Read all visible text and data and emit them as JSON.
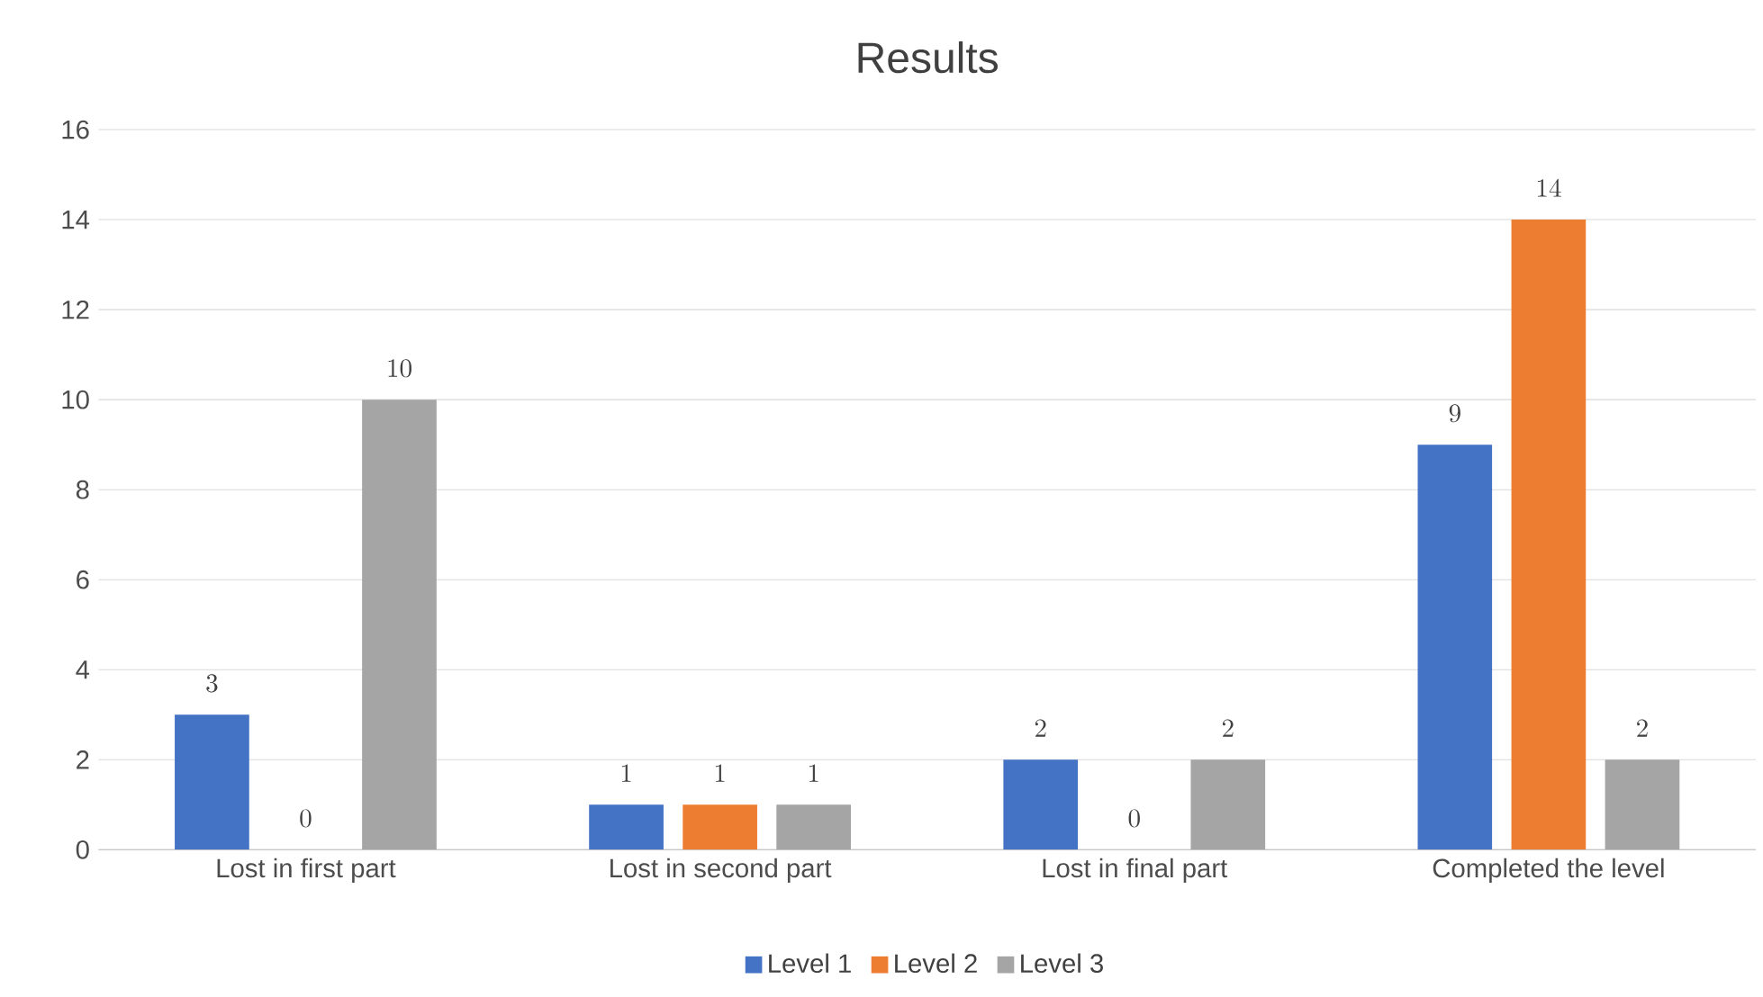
{
  "chart_data": {
    "type": "bar",
    "title": "Results",
    "categories": [
      "Lost in first part",
      "Lost in second part",
      "Lost in final part",
      "Completed the level"
    ],
    "series": [
      {
        "name": "Level 1",
        "color": "#4472c4",
        "values": [
          3,
          1,
          2,
          9
        ]
      },
      {
        "name": "Level 2",
        "color": "#ed7d31",
        "values": [
          0,
          1,
          0,
          14
        ]
      },
      {
        "name": "Level 3",
        "color": "#a5a5a5",
        "values": [
          10,
          1,
          2,
          2
        ]
      }
    ],
    "ylim": [
      0,
      16
    ],
    "yticks": [
      0,
      2,
      4,
      6,
      8,
      10,
      12,
      14,
      16
    ],
    "grid": "y",
    "legend": "bottom",
    "data_labels": true
  }
}
